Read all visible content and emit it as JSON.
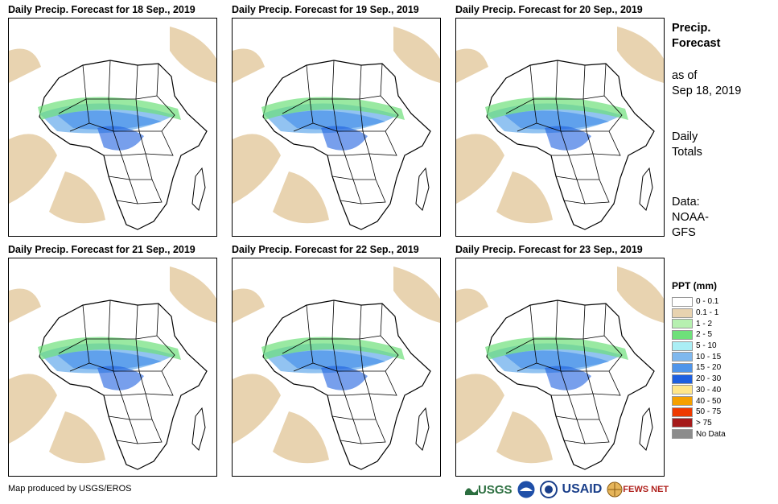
{
  "panels": [
    {
      "title": "Daily Precip. Forecast for 18  Sep., 2019"
    },
    {
      "title": "Daily Precip. Forecast for 19  Sep., 2019"
    },
    {
      "title": "Daily Precip. Forecast for 20  Sep., 2019"
    },
    {
      "title": "Daily Precip. Forecast for 21  Sep., 2019"
    },
    {
      "title": "Daily Precip. Forecast for 22  Sep., 2019"
    },
    {
      "title": "Daily Precip. Forecast for 23  Sep., 2019"
    }
  ],
  "sidebar": {
    "heading_line1": "Precip.",
    "heading_line2": "Forecast",
    "asof_line1": "as of",
    "asof_line2": "Sep 18, 2019",
    "totals_line1": "Daily",
    "totals_line2": "Totals",
    "data_line1": "Data:",
    "data_line2": "NOAA-",
    "data_line3": "GFS"
  },
  "legend": {
    "title": "PPT (mm)",
    "items": [
      {
        "label": "0 - 0.1",
        "color": "#ffffff"
      },
      {
        "label": "0.1 - 1",
        "color": "#e8d3b0"
      },
      {
        "label": "1 - 2",
        "color": "#b6f0b0"
      },
      {
        "label": "2 - 5",
        "color": "#6ee07a"
      },
      {
        "label": "5 - 10",
        "color": "#aaeef5"
      },
      {
        "label": "10 - 15",
        "color": "#7fb8ee"
      },
      {
        "label": "15 - 20",
        "color": "#4f95ea"
      },
      {
        "label": "20 - 30",
        "color": "#1d5fe0"
      },
      {
        "label": "30 - 40",
        "color": "#ffe68a"
      },
      {
        "label": "40 - 50",
        "color": "#f5a000"
      },
      {
        "label": "50 - 75",
        "color": "#ee3a00"
      },
      {
        "label": "> 75",
        "color": "#a51a1a"
      },
      {
        "label": "No Data",
        "color": "#8c8c8c"
      }
    ]
  },
  "footer": {
    "credit": "Map produced by USGS/EROS"
  },
  "logos": {
    "usgs": "USGS",
    "usaid": "USAID",
    "fewsnet": "FEWS NET"
  }
}
